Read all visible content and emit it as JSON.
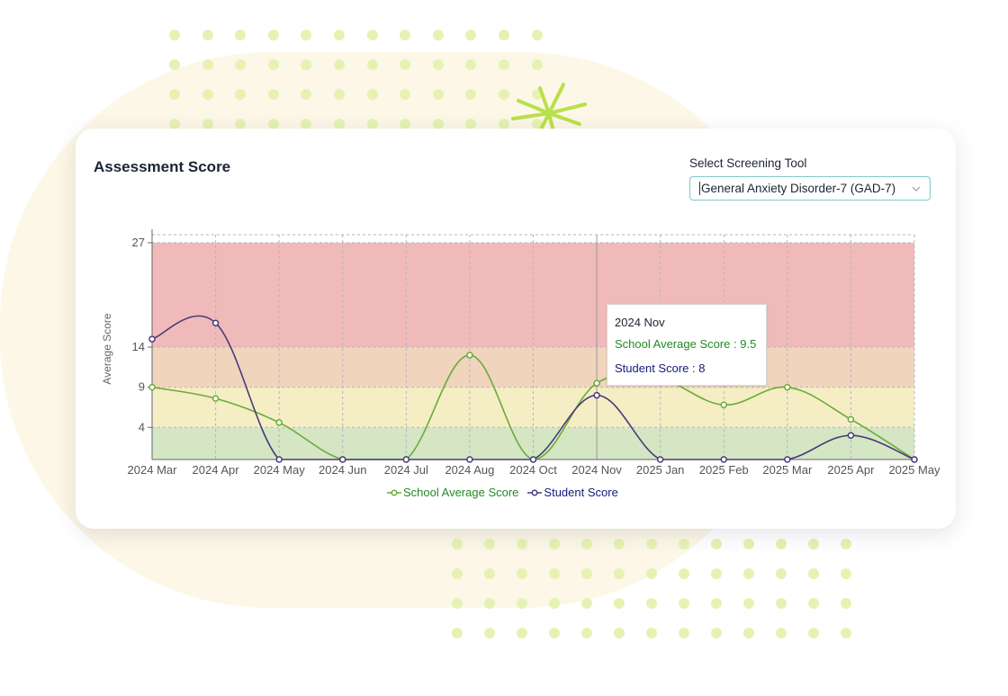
{
  "card": {
    "title": "Assessment Score"
  },
  "screening_tool": {
    "label": "Select Screening Tool",
    "selected": "General Anxiety Disorder-7 (GAD-7)",
    "icon": "chevron-down-icon"
  },
  "tooltip": {
    "title": "2024 Nov",
    "school_line": "School Average Score : 9.5",
    "student_line": "Student Score : 8"
  },
  "colors": {
    "school": "#6aab3a",
    "student": "#4a3a7a",
    "school_legend_text": "#228b22",
    "student_legend_text": "#141a7a",
    "band_severe": "#f0baba",
    "band_moderate": "#f0d4bc",
    "band_mild": "#f5edc4",
    "band_minimal": "#d4e6c4"
  },
  "chart_data": {
    "type": "line",
    "title": "",
    "xlabel": "",
    "ylabel": "Average Score",
    "categories": [
      "2024 Mar",
      "2024 Apr",
      "2024 May",
      "2024 Jun",
      "2024 Jul",
      "2024 Aug",
      "2024 Oct",
      "2024 Nov",
      "2025 Jan",
      "2025 Feb",
      "2025 Mar",
      "2025 Apr",
      "2025 May"
    ],
    "yticks": [
      4,
      9,
      14,
      27
    ],
    "ylim": [
      0,
      28
    ],
    "bands": [
      {
        "from": 0,
        "to": 4,
        "color": "#d4e6c4"
      },
      {
        "from": 4,
        "to": 9,
        "color": "#f5edc4"
      },
      {
        "from": 9,
        "to": 14,
        "color": "#f0d4bc"
      },
      {
        "from": 14,
        "to": 27,
        "color": "#f0baba"
      }
    ],
    "series": [
      {
        "name": "School Average Score",
        "values": [
          9,
          7.6,
          4.6,
          0,
          0,
          13,
          0,
          9.5,
          10,
          6.8,
          9,
          5,
          0
        ]
      },
      {
        "name": "Student Score",
        "values": [
          15,
          17,
          0,
          0,
          0,
          0,
          0,
          8,
          0,
          0,
          0,
          3,
          0
        ]
      }
    ],
    "legend": "bottom",
    "grid": true,
    "highlight_category": "2024 Nov"
  }
}
